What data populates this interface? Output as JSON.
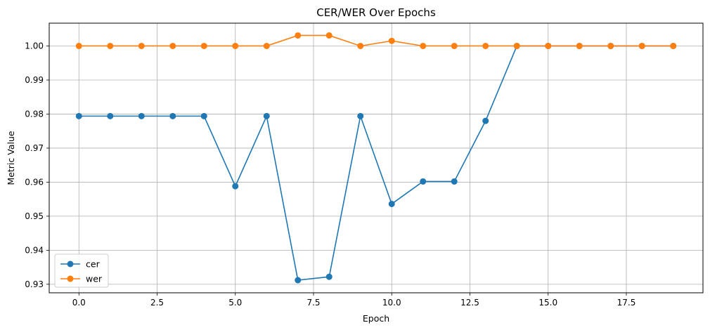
{
  "chart_data": {
    "type": "line",
    "title": "CER/WER Over Epochs",
    "xlabel": "Epoch",
    "ylabel": "Metric Value",
    "xlim": [
      -0.95,
      19.95
    ],
    "ylim": [
      0.9275,
      1.0067
    ],
    "xticks": [
      0.0,
      2.5,
      5.0,
      7.5,
      10.0,
      12.5,
      15.0,
      17.5
    ],
    "xtick_labels": [
      "0.0",
      "2.5",
      "5.0",
      "7.5",
      "10.0",
      "12.5",
      "15.0",
      "17.5"
    ],
    "yticks": [
      0.93,
      0.94,
      0.95,
      0.96,
      0.97,
      0.98,
      0.99,
      1.0
    ],
    "ytick_labels": [
      "0.93",
      "0.94",
      "0.95",
      "0.96",
      "0.97",
      "0.98",
      "0.99",
      "1.00"
    ],
    "grid": true,
    "legend_position": "lower-left",
    "x": [
      0,
      1,
      2,
      3,
      4,
      5,
      6,
      7,
      8,
      9,
      10,
      11,
      12,
      13,
      14,
      15,
      16,
      17,
      18,
      19
    ],
    "series": [
      {
        "name": "cer",
        "color": "#1f77b4",
        "marker": "circle",
        "values": [
          0.9794,
          0.9794,
          0.9794,
          0.9794,
          0.9794,
          0.9588,
          0.9794,
          0.9312,
          0.9322,
          0.9794,
          0.9536,
          0.9602,
          0.9602,
          0.978,
          1.0,
          1.0,
          1.0,
          1.0,
          1.0,
          1.0
        ]
      },
      {
        "name": "wer",
        "color": "#ff7f0e",
        "marker": "circle",
        "values": [
          1.0,
          1.0,
          1.0,
          1.0,
          1.0,
          1.0,
          1.0,
          1.0031,
          1.0031,
          1.0,
          1.0015,
          1.0,
          1.0,
          1.0,
          1.0,
          1.0,
          1.0,
          1.0,
          1.0,
          1.0
        ]
      }
    ]
  }
}
